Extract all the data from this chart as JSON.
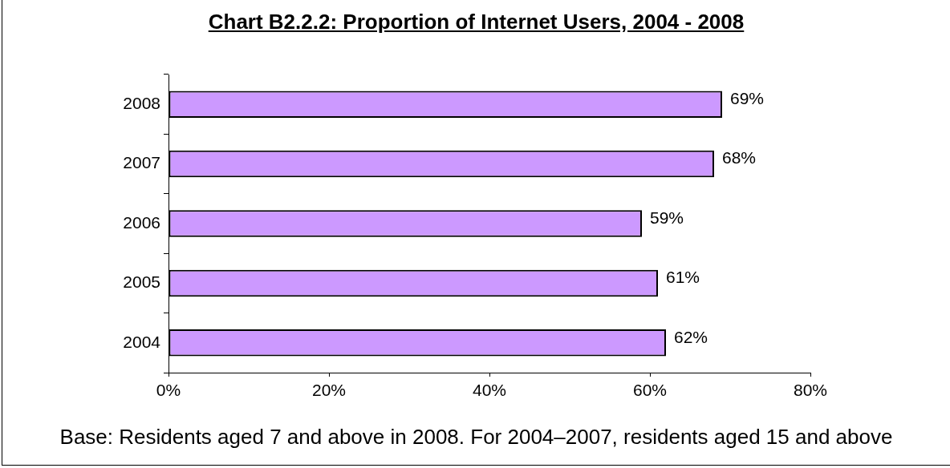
{
  "chart_data": {
    "type": "bar",
    "orientation": "horizontal",
    "title": "Chart B2.2.2: Proportion of Internet Users, 2004 - 2008",
    "categories": [
      "2008",
      "2007",
      "2006",
      "2005",
      "2004"
    ],
    "values": [
      69,
      68,
      59,
      61,
      62
    ],
    "value_labels": [
      "69%",
      "68%",
      "59%",
      "61%",
      "62%"
    ],
    "color": "#cc99ff",
    "xlim": [
      0,
      80
    ],
    "xticks": [
      {
        "value": 0,
        "label": "0%"
      },
      {
        "value": 20,
        "label": "20%"
      },
      {
        "value": 40,
        "label": "40%"
      },
      {
        "value": 60,
        "label": "60%"
      },
      {
        "value": 80,
        "label": "80%"
      }
    ],
    "grid": false,
    "legend": false,
    "annotations": [
      "Base: Residents aged 7 and above in 2008. For 2004–2007, residents aged 15 and above"
    ]
  }
}
